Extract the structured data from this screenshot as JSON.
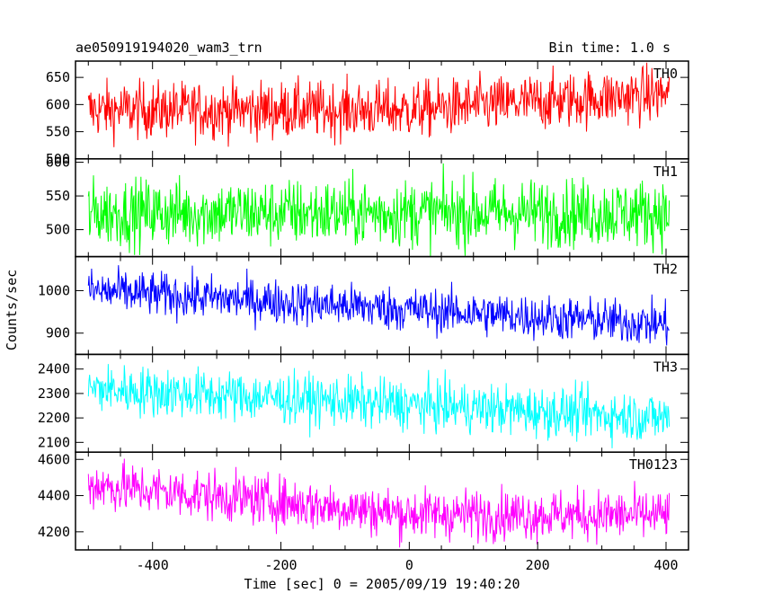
{
  "chart_data": {
    "type": "line",
    "title": "ae050919194020_wam3_trn",
    "subtitle": "Bin time: 1.0 s",
    "xlabel": "Time [sec] 0 = 2005/09/19 19:40:20",
    "ylabel": "Counts/sec",
    "xlim": [
      -520,
      435
    ],
    "x_ticks": [
      -400,
      -200,
      0,
      200,
      400
    ],
    "x_range": [
      -500,
      405
    ],
    "bin_time": 1.0,
    "panels": [
      {
        "name": "TH0",
        "color": "#ff0000",
        "ylim": [
          500,
          680
        ],
        "y_ticks": [
          500,
          550,
          600,
          650
        ],
        "trend": [
          [
            -500,
            590
          ],
          [
            0,
            590
          ],
          [
            405,
            620
          ]
        ],
        "noise": 28
      },
      {
        "name": "TH1",
        "color": "#00ff00",
        "ylim": [
          460,
          605
        ],
        "y_ticks": [
          500,
          550,
          600
        ],
        "trend": [
          [
            -500,
            525
          ],
          [
            405,
            525
          ]
        ],
        "noise": 27
      },
      {
        "name": "TH2",
        "color": "#0000ff",
        "ylim": [
          850,
          1080
        ],
        "y_ticks": [
          900,
          1000
        ],
        "trend": [
          [
            -500,
            1000
          ],
          [
            405,
            920
          ]
        ],
        "noise": 28
      },
      {
        "name": "TH3",
        "color": "#00ffff",
        "ylim": [
          2060,
          2460
        ],
        "y_ticks": [
          2100,
          2200,
          2300,
          2400
        ],
        "trend": [
          [
            -500,
            2320
          ],
          [
            405,
            2200
          ]
        ],
        "noise": 55
      },
      {
        "name": "TH0123",
        "color": "#ff00ff",
        "ylim": [
          4100,
          4640
        ],
        "y_ticks": [
          4200,
          4400,
          4600
        ],
        "trend": [
          [
            -500,
            4460
          ],
          [
            0,
            4300
          ],
          [
            405,
            4290
          ]
        ],
        "noise": 75
      }
    ]
  }
}
